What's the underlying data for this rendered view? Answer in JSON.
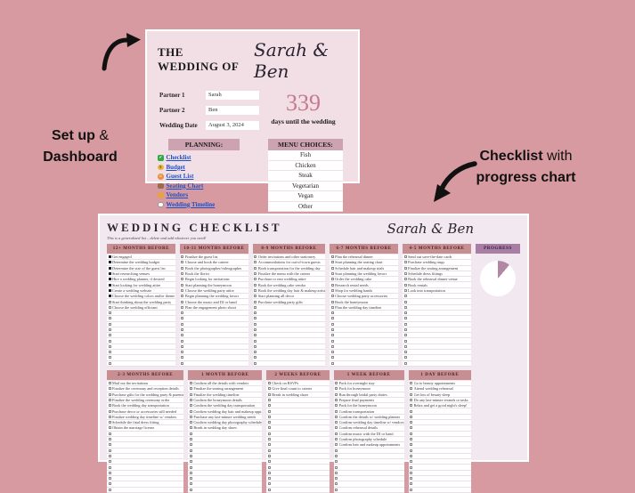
{
  "page_bg": "#d69aa0",
  "annotations": {
    "setup_dashboard": {
      "bold1": "Set up",
      "regular": " &",
      "bold2": "Dashboard"
    },
    "checklist_note": {
      "bold1": "Checklist",
      "regular": " with",
      "bold2": "progress chart"
    }
  },
  "dashboard": {
    "title_prefix": "THE WEDDING OF",
    "couple_names": "Sarah & Ben",
    "fields": [
      {
        "label": "Partner 1",
        "value": "Sarah"
      },
      {
        "label": "Partner 2",
        "value": "Ben"
      },
      {
        "label": "Wedding Date",
        "value": "August 3, 2024"
      }
    ],
    "countdown": {
      "number": "339",
      "label": "days until the wedding"
    },
    "planning": {
      "header": "PLANNING:",
      "links": [
        {
          "icon": "check-icon",
          "label": "Checklist"
        },
        {
          "icon": "money-icon",
          "label": "Budget"
        },
        {
          "icon": "people-icon",
          "label": "Guest List"
        },
        {
          "icon": "chair-icon",
          "label": "Seating Chart"
        },
        {
          "icon": "vendor-icon",
          "label": "Vendors"
        },
        {
          "icon": "clock-icon",
          "label": "Wedding Timeline"
        }
      ]
    },
    "menu": {
      "header": "MENU CHOICES:",
      "options": [
        "Fish",
        "Chicken",
        "Steak",
        "Vegetarian",
        "Vegan",
        "Other"
      ]
    }
  },
  "checklist": {
    "title": "WEDDING CHECKLIST",
    "subtitle": "This is a generalized list  –  delete and add whatever you need!",
    "couple_names": "Sarah & Ben",
    "rows_per_column": 20,
    "progress": {
      "header": "PROGRESS",
      "fraction": 0.11,
      "slice_color": "#b286a5",
      "remainder_color": "#ffffff"
    },
    "columns_top": [
      {
        "header": "12+ MONTHS BEFORE",
        "items": [
          {
            "text": "Get engaged",
            "checked": true
          },
          {
            "text": "Determine the wedding budget",
            "checked": true
          },
          {
            "text": "Determine the size of the guest list",
            "checked": true
          },
          {
            "text": "Start researching venues",
            "checked": true
          },
          {
            "text": "Hire a wedding planner, if desired",
            "checked": true
          },
          {
            "text": "Start looking for wedding attire",
            "checked": true
          },
          {
            "text": "Create a wedding website",
            "checked": true
          },
          {
            "text": "Choose the wedding colors and/or theme",
            "checked": true
          },
          {
            "text": "Start thinking about the wedding party",
            "checked": false
          },
          {
            "text": "Choose the wedding officiant",
            "checked": false
          }
        ]
      },
      {
        "header": "10-11 MONTHS BEFORE",
        "items": [
          {
            "text": "Finalize the guest list",
            "checked": false
          },
          {
            "text": "Choose and book the caterer",
            "checked": false
          },
          {
            "text": "Book the photographer/videographer",
            "checked": false
          },
          {
            "text": "Book the florist",
            "checked": false
          },
          {
            "text": "Begin looking for invitations",
            "checked": false
          },
          {
            "text": "Start planning the honeymoon",
            "checked": false
          },
          {
            "text": "Choose the wedding party attire",
            "checked": false
          },
          {
            "text": "Begin planning the wedding favors",
            "checked": false
          },
          {
            "text": "Choose the music and DJ or band",
            "checked": false
          },
          {
            "text": "Plan the engagement photo shoot",
            "checked": false
          }
        ]
      },
      {
        "header": "8-9 MONTHS BEFORE",
        "items": [
          {
            "text": "Order invitations and other stationery",
            "checked": false
          },
          {
            "text": "Accommodations for out-of-town guests",
            "checked": false
          },
          {
            "text": "Book transportation for the wedding day",
            "checked": false
          },
          {
            "text": "Finalize the menu with the caterer",
            "checked": false
          },
          {
            "text": "Purchase or rent wedding attire",
            "checked": false
          },
          {
            "text": "Book the wedding cake vendor",
            "checked": false
          },
          {
            "text": "Book the wedding day hair & makeup artist",
            "checked": false
          },
          {
            "text": "Start planning all decor",
            "checked": false
          },
          {
            "text": "Purchase wedding party gifts",
            "checked": false
          }
        ]
      },
      {
        "header": "6-7 MONTHS BEFORE",
        "items": [
          {
            "text": "Plan the rehearsal dinner",
            "checked": false
          },
          {
            "text": "Start planning the seating chart",
            "checked": false
          },
          {
            "text": "Schedule hair and makeup trials",
            "checked": false
          },
          {
            "text": "Start planning the wedding favors",
            "checked": false
          },
          {
            "text": "Order the wedding cake",
            "checked": false
          },
          {
            "text": "Research rental needs",
            "checked": false
          },
          {
            "text": "Shop for wedding bands",
            "checked": false
          },
          {
            "text": "Choose wedding party accessories",
            "checked": false
          },
          {
            "text": "Book the honeymoon",
            "checked": false
          },
          {
            "text": "Plan the wedding day timeline",
            "checked": false
          }
        ]
      },
      {
        "header": "4-5 MONTHS BEFORE",
        "items": [
          {
            "text": "Send out save-the-date cards",
            "checked": false
          },
          {
            "text": "Purchase wedding rings",
            "checked": false
          },
          {
            "text": "Finalize the seating arrangement",
            "checked": false
          },
          {
            "text": "Schedule dress fittings",
            "checked": false
          },
          {
            "text": "Book the rehearsal dinner venue",
            "checked": false
          },
          {
            "text": "Book rentals",
            "checked": false
          },
          {
            "text": "Look into transportation",
            "checked": false
          }
        ]
      }
    ],
    "columns_bottom": [
      {
        "header": "2-3 MONTHS BEFORE",
        "items": [
          {
            "text": "Mail out the invitations",
            "checked": false
          },
          {
            "text": "Finalize the ceremony and reception details",
            "checked": false
          },
          {
            "text": "Purchase gifts for the wedding party & parents",
            "checked": false
          },
          {
            "text": "Finalize the wedding ceremony order",
            "checked": false
          },
          {
            "text": "Book the wedding day transportation",
            "checked": false
          },
          {
            "text": "Purchase decor or accessories still needed",
            "checked": false
          },
          {
            "text": "Finalize wedding day timeline w/ vendors",
            "checked": false
          },
          {
            "text": "Schedule the final dress fitting",
            "checked": false
          },
          {
            "text": "Obtain the marriage license",
            "checked": false
          }
        ]
      },
      {
        "header": "1 MONTH BEFORE",
        "items": [
          {
            "text": "Confirm all the details with vendors",
            "checked": false
          },
          {
            "text": "Finalize the seating arrangement",
            "checked": false
          },
          {
            "text": "Finalize the wedding timeline",
            "checked": false
          },
          {
            "text": "Confirm the honeymoon details",
            "checked": false
          },
          {
            "text": "Confirm the wedding day transportation",
            "checked": false
          },
          {
            "text": "Confirm wedding day hair and makeup appt.",
            "checked": false
          },
          {
            "text": "Purchase any last-minute wedding needs",
            "checked": false
          },
          {
            "text": "Confirm wedding day photography schedule",
            "checked": false
          },
          {
            "text": "Break in wedding day shoes",
            "checked": false
          }
        ]
      },
      {
        "header": "2 WEEKS BEFORE",
        "items": [
          {
            "text": "Check on RSVPs",
            "checked": false
          },
          {
            "text": "Give final count to caterer",
            "checked": false
          },
          {
            "text": "Break in wedding shoes",
            "checked": false
          }
        ]
      },
      {
        "header": "1 WEEK BEFORE",
        "items": [
          {
            "text": "Pack for overnight stay",
            "checked": false
          },
          {
            "text": "Pack for honeymoon",
            "checked": false
          },
          {
            "text": "Run through bridal party duties",
            "checked": false
          },
          {
            "text": "Prepare final payments",
            "checked": false
          },
          {
            "text": "Pack for the honeymoon",
            "checked": false
          },
          {
            "text": "Confirm transportation",
            "checked": false
          },
          {
            "text": "Confirm the details w/ wedding planner",
            "checked": false
          },
          {
            "text": "Confirm wedding day timeline w/ vendors",
            "checked": false
          },
          {
            "text": "Confirm rehearsal details",
            "checked": false
          },
          {
            "text": "Confirm music with the DJ or band",
            "checked": false
          },
          {
            "text": "Confirm photography schedule",
            "checked": false
          },
          {
            "text": "Confirm hair and makeup appointments",
            "checked": false
          }
        ]
      },
      {
        "header": "1 DAY BEFORE",
        "items": [
          {
            "text": "Go to beauty appointments",
            "checked": false
          },
          {
            "text": "Attend wedding rehearsal",
            "checked": false
          },
          {
            "text": "Get lots of beauty sleep",
            "checked": false
          },
          {
            "text": "Do any last-minute errands or tasks",
            "checked": false
          },
          {
            "text": "Relax and get a good night's sleep!",
            "checked": false
          }
        ]
      }
    ]
  }
}
